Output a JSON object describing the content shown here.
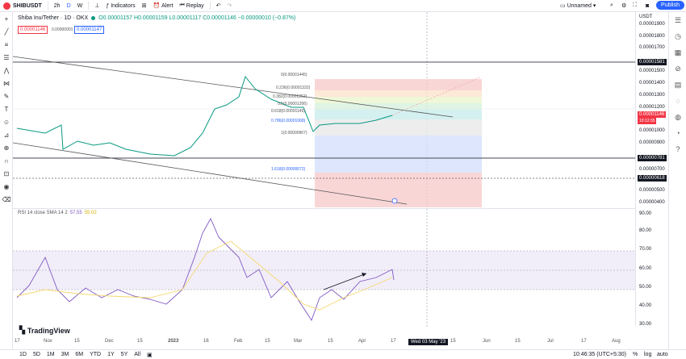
{
  "topbar": {
    "symbol": "SHIBUSDT",
    "interval_2h": "2h",
    "interval_d": "D",
    "interval_w": "W",
    "indicators": "Indicators",
    "alert": "Alert",
    "replay": "Replay",
    "layout_name": "Unnamed",
    "publish": "Publish"
  },
  "legend": {
    "title": "Shiba Inu/Tether · 1D · OKX",
    "ohlc": "O0.00001157 H0.00001159 L0.00001117 C0.00001146 −0.00000010 (−0.87%)",
    "sell_price": "0.00001146",
    "spread": "0.00000001",
    "buy_price": "0.00001147"
  },
  "fib_levels": [
    {
      "label": "0(0.00001445)"
    },
    {
      "label": "0.236(0.00001332)"
    },
    {
      "label": "0.382(0.00001262)"
    },
    {
      "label": "0.5(0.00001206)"
    },
    {
      "label": "0.618(0.00001149)"
    },
    {
      "label": "0.786(0.00001068)"
    },
    {
      "label": "1(0.00000967)"
    },
    {
      "label": "1.618(0.00000672)"
    }
  ],
  "price_scale": {
    "currency": "USDT",
    "labels": [
      "0.00001900",
      "0.00001800",
      "0.00001700",
      "0.00001600",
      "0.00001500",
      "0.00001400",
      "0.00001300",
      "0.00001200",
      "0.00001100",
      "0.00001000",
      "0.00000900",
      "0.00000800",
      "0.00000700",
      "0.00000600",
      "0.00000500",
      "0.00000400"
    ],
    "tag_top": "0.00001581",
    "tag_current": "0.00001146",
    "tag_countdown": "10:12:35",
    "tag_mid": "0.00000781",
    "tag_low": "0.00000618"
  },
  "rsi": {
    "title": "RSI 14 close SMA 14 2",
    "val1": "57.55",
    "val2": "55.02",
    "scale": [
      "90.00",
      "80.00",
      "70.00",
      "60.00",
      "50.00",
      "40.00",
      "30.00"
    ]
  },
  "time_axis": {
    "labels": [
      "17",
      "Nov",
      "15",
      "Dec",
      "15",
      "2023",
      "16",
      "Feb",
      "15",
      "Mar",
      "15",
      "Apr",
      "17",
      "15",
      "Jun",
      "15",
      "Jul",
      "17",
      "Aug"
    ],
    "crosshair_date": "Wed 03 May '23"
  },
  "bottombar": {
    "ranges": [
      "1D",
      "5D",
      "1M",
      "3M",
      "6M",
      "YTD",
      "1Y",
      "5Y",
      "All"
    ],
    "clock": "10:46:35 (UTC+5:30)",
    "percent": "%",
    "log": "log",
    "auto": "auto"
  },
  "brand": "TradingView",
  "colors": {
    "accent": "#2962ff",
    "up": "#089981",
    "down": "#f23645",
    "rsi_line": "#7e57c2",
    "rsi_signal": "#f5d76e"
  }
}
